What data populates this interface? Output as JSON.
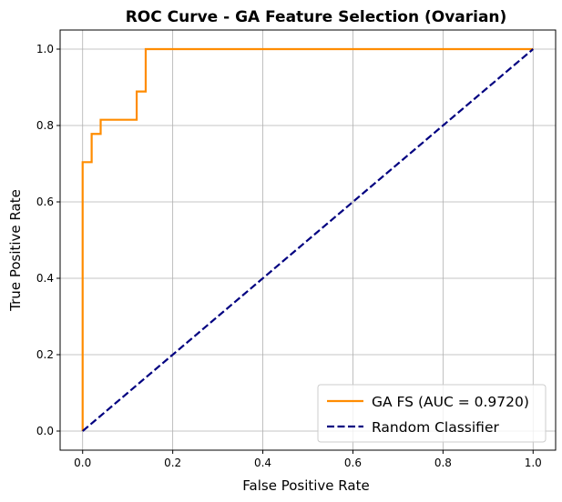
{
  "chart_data": {
    "type": "line",
    "title": "ROC Curve - GA Feature Selection (Ovarian)",
    "xlabel": "False Positive Rate",
    "ylabel": "True Positive Rate",
    "xlim": [
      -0.05,
      1.05
    ],
    "ylim": [
      -0.05,
      1.05
    ],
    "xticks": [
      0.0,
      0.2,
      0.4,
      0.6,
      0.8,
      1.0
    ],
    "xtick_labels": [
      "0.0",
      "0.2",
      "0.4",
      "0.6",
      "0.8",
      "1.0"
    ],
    "yticks": [
      0.0,
      0.2,
      0.4,
      0.6,
      0.8,
      1.0
    ],
    "ytick_labels": [
      "0.0",
      "0.2",
      "0.4",
      "0.6",
      "0.8",
      "1.0"
    ],
    "grid": true,
    "legend_position": "lower-right",
    "series": [
      {
        "name": "GA FS (AUC = 0.9720)",
        "color": "#ff8c00",
        "style": "solid",
        "x": [
          0.0,
          0.0,
          0.02,
          0.02,
          0.04,
          0.04,
          0.12,
          0.12,
          0.14,
          0.14,
          1.0
        ],
        "y": [
          0.0,
          0.704,
          0.704,
          0.778,
          0.778,
          0.815,
          0.815,
          0.889,
          0.889,
          1.0,
          1.0
        ]
      },
      {
        "name": "Random Classifier",
        "color": "#000080",
        "style": "dashed",
        "x": [
          0.0,
          1.0
        ],
        "y": [
          0.0,
          1.0
        ]
      }
    ]
  }
}
